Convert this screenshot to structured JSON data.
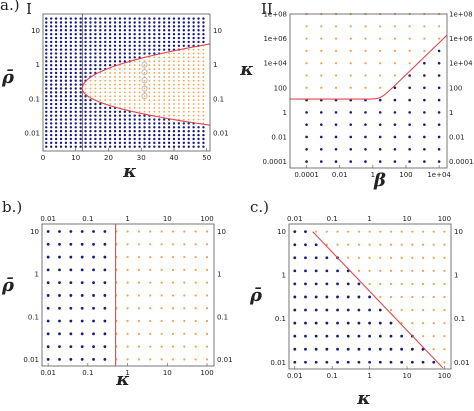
{
  "colors": {
    "stable": "#1a1a80",
    "unstable": "#f5a14a",
    "boundary": "#e0494c",
    "marker": "#b0b0b0"
  },
  "chart_data": [
    {
      "id": "a1",
      "panel_label": "a.)",
      "subpanel_label": "I",
      "type": "scatter",
      "xlabel": "κ",
      "ylabel": "ρ̄",
      "xscale": "linear",
      "yscale": "log",
      "xlim": [
        0,
        51
      ],
      "ylim": [
        0.003,
        30
      ],
      "xticks": [
        0,
        10,
        20,
        30,
        40,
        50
      ],
      "xtick_labels": [
        "0",
        "10",
        "20",
        "30",
        "40",
        "50"
      ],
      "yticks": [
        0.01,
        0.1,
        1,
        10
      ],
      "ytick_labels": [
        "0.01",
        "0.1",
        "1",
        "10"
      ],
      "grid_x": {
        "start": 1,
        "end": 50,
        "step": 1.5
      },
      "grid_y_log": {
        "start": 0.004,
        "end": 22,
        "count": 34
      },
      "vertical_line_x": 12,
      "markers_x": 31,
      "markers_y": [
        1,
        0.6,
        0.35,
        0.2,
        0.12
      ],
      "boundary_curve": {
        "vertex_x": 12,
        "vertex_y": 0.2,
        "upper_end": [
          51,
          4
        ],
        "lower_end": [
          51,
          0.017
        ]
      },
      "series": [
        {
          "name": "",
          "rule": "inside_boundary_unstable"
        }
      ]
    },
    {
      "id": "a2",
      "subpanel_label": "II",
      "type": "scatter",
      "xlabel": "β",
      "ylabel": "κ",
      "xscale": "log",
      "yscale": "log",
      "xlim": [
        1e-05,
        30000
      ],
      "ylim": [
        3e-05,
        100000000
      ],
      "xticks": [
        0.0001,
        0.01,
        1,
        100,
        10000
      ],
      "xtick_labels": [
        "0.0001",
        "0.01",
        "1",
        "100",
        "1e+04"
      ],
      "yticks": [
        0.0001,
        0.01,
        1,
        100,
        10000,
        1000000,
        100000000
      ],
      "ytick_labels": [
        "0.0001",
        "0.01",
        "1",
        "100",
        "1e+04",
        "1e+06",
        "1e+08"
      ],
      "ytick_labels_right": [
        "0.0001",
        "0.01",
        "1",
        "100",
        "1e+04",
        "1e+06",
        "1e+08"
      ],
      "grid_x_exp": [
        -4,
        4,
        10
      ],
      "grid_y_exp": [
        -4,
        8,
        13
      ],
      "boundary_curve": {
        "plateau_y": 12,
        "knee_x": 3,
        "slope": 1.3
      }
    },
    {
      "id": "b",
      "panel_label": "b.)",
      "type": "scatter",
      "xlabel": "κ",
      "ylabel": "ρ̄",
      "xscale": "log",
      "yscale": "log",
      "xlim": [
        0.007,
        150
      ],
      "ylim": [
        0.007,
        15
      ],
      "xticks": [
        0.01,
        0.1,
        1,
        10,
        100
      ],
      "xtick_labels": [
        "0.01",
        "0.1",
        "1",
        "10",
        "100"
      ],
      "yticks": [
        0.01,
        0.1,
        1,
        10
      ],
      "ytick_labels": [
        "0.01",
        "0.1",
        "1",
        "10"
      ],
      "grid_x_log": {
        "start": 0.01,
        "end": 100,
        "count": 15
      },
      "grid_y_log": {
        "start": 0.01,
        "end": 10,
        "count": 11
      },
      "vertical_line_x": 0.5
    },
    {
      "id": "c",
      "panel_label": "c.)",
      "type": "scatter",
      "xlabel": "κ",
      "ylabel": "ρ̄",
      "xscale": "log",
      "yscale": "log",
      "xlim": [
        0.007,
        150
      ],
      "ylim": [
        0.007,
        15
      ],
      "xticks": [
        0.01,
        0.1,
        1,
        10,
        100
      ],
      "xtick_labels": [
        "0.01",
        "0.1",
        "1",
        "10",
        "100"
      ],
      "yticks": [
        0.01,
        0.1,
        1,
        10
      ],
      "ytick_labels": [
        "0.01",
        "0.1",
        "1",
        "10"
      ],
      "grid_x_log": {
        "start": 0.01,
        "end": 100,
        "count": 15
      },
      "grid_y_log": {
        "start": 0.01,
        "end": 10,
        "count": 11
      },
      "diagonal_line": {
        "from": [
          0.03,
          10
        ],
        "to": [
          90,
          0.0075
        ]
      }
    }
  ]
}
